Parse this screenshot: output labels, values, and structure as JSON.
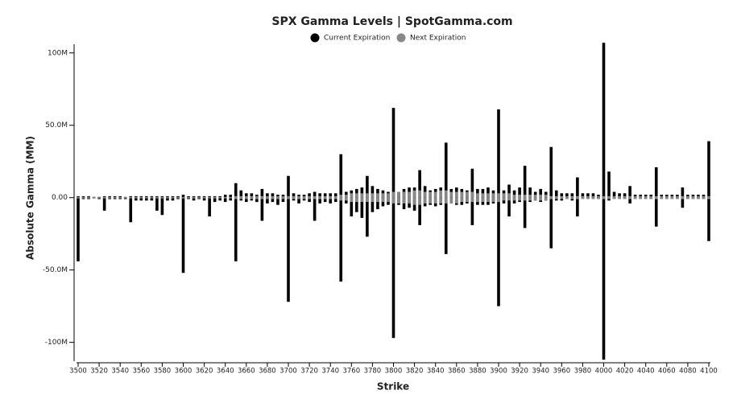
{
  "chart_data": {
    "type": "bar",
    "title": "SPX Gamma Levels | SpotGamma.com",
    "x_label": "Strike",
    "y_label": "Absolute Gamma (MM)",
    "x": [
      3500,
      3505,
      3510,
      3515,
      3520,
      3525,
      3530,
      3535,
      3540,
      3545,
      3550,
      3555,
      3560,
      3565,
      3570,
      3575,
      3580,
      3585,
      3590,
      3595,
      3600,
      3605,
      3610,
      3615,
      3620,
      3625,
      3630,
      3635,
      3640,
      3645,
      3650,
      3655,
      3660,
      3665,
      3670,
      3675,
      3680,
      3685,
      3690,
      3695,
      3700,
      3705,
      3710,
      3715,
      3720,
      3725,
      3730,
      3735,
      3740,
      3745,
      3750,
      3755,
      3760,
      3765,
      3770,
      3775,
      3780,
      3785,
      3790,
      3795,
      3800,
      3805,
      3810,
      3815,
      3820,
      3825,
      3830,
      3835,
      3840,
      3845,
      3850,
      3855,
      3860,
      3865,
      3870,
      3875,
      3880,
      3885,
      3890,
      3895,
      3900,
      3905,
      3910,
      3915,
      3920,
      3925,
      3930,
      3935,
      3940,
      3945,
      3950,
      3955,
      3960,
      3965,
      3970,
      3975,
      3980,
      3985,
      3990,
      3995,
      4000,
      4005,
      4010,
      4015,
      4020,
      4025,
      4030,
      4035,
      4040,
      4045,
      4050,
      4055,
      4060,
      4065,
      4070,
      4075,
      4080,
      4085,
      4090,
      4095,
      4100
    ],
    "series": [
      {
        "name": "Current Expiration",
        "color": "#000000",
        "calls": [
          1,
          1,
          1,
          0.5,
          0.5,
          1,
          1,
          1,
          1,
          0.5,
          1,
          1,
          1,
          1,
          1,
          1,
          1,
          1,
          1,
          1,
          2,
          1,
          1,
          1,
          1,
          1,
          1,
          1,
          2,
          2,
          10,
          5,
          3,
          3,
          2,
          6,
          3,
          3,
          2,
          2,
          15,
          3,
          2,
          2,
          3,
          4,
          3,
          3,
          3,
          3,
          30,
          4,
          5,
          6,
          7,
          15,
          8,
          6,
          5,
          4,
          62,
          4,
          6,
          7,
          7,
          19,
          8,
          5,
          6,
          7,
          38,
          6,
          7,
          6,
          5,
          20,
          6,
          6,
          7,
          5,
          61,
          5,
          9,
          5,
          7,
          22,
          7,
          4,
          6,
          4,
          35,
          5,
          3,
          3,
          3,
          14,
          3,
          3,
          3,
          2,
          107,
          18,
          4,
          3,
          3,
          8,
          2,
          2,
          2,
          2,
          21,
          2,
          2,
          2,
          2,
          7,
          2,
          2,
          2,
          2,
          39
        ],
        "puts": [
          -44,
          -1,
          -1,
          -0.5,
          -1,
          -9,
          -1,
          -1,
          -1,
          -1,
          -17,
          -2,
          -2,
          -2,
          -2,
          -9,
          -12,
          -2,
          -2,
          -1,
          -52,
          -1,
          -2,
          -1,
          -2,
          -13,
          -3,
          -2,
          -3,
          -2,
          -44,
          -2,
          -3,
          -2,
          -3,
          -16,
          -4,
          -3,
          -5,
          -3,
          -72,
          -2,
          -4,
          -2,
          -3,
          -16,
          -4,
          -3,
          -4,
          -3,
          -58,
          -4,
          -13,
          -10,
          -14,
          -27,
          -10,
          -8,
          -6,
          -5,
          -97,
          -5,
          -8,
          -7,
          -9,
          -19,
          -6,
          -5,
          -6,
          -5,
          -39,
          -4,
          -5,
          -5,
          -4,
          -19,
          -5,
          -5,
          -5,
          -4,
          -75,
          -4,
          -13,
          -4,
          -3,
          -21,
          -3,
          -2,
          -3,
          -2,
          -35,
          -2,
          -2,
          -1,
          -2,
          -13,
          -1,
          -1,
          -1,
          -1,
          -112,
          -2,
          -1,
          -1,
          -1,
          -4,
          -1,
          -1,
          -1,
          -1,
          -20,
          -1,
          -1,
          -1,
          -1,
          -7,
          -1,
          -1,
          -1,
          -1,
          -30
        ]
      },
      {
        "name": "Next Expiration",
        "color": "#888888",
        "calls": [
          0.5,
          0.5,
          0.5,
          0.5,
          0.5,
          0.5,
          0.5,
          0.5,
          0.5,
          0.5,
          0.5,
          0.5,
          0.5,
          0.5,
          0.5,
          0.5,
          0.5,
          0.5,
          0.5,
          0.5,
          0.5,
          0.5,
          0.5,
          0.5,
          0.5,
          0.5,
          0.5,
          0.5,
          0.5,
          0.5,
          1,
          1,
          1,
          1,
          1,
          1,
          1,
          1,
          1,
          1,
          1,
          1,
          1,
          1,
          1,
          1,
          1,
          1,
          1,
          1,
          2,
          2,
          3,
          3,
          3,
          3,
          3,
          3,
          3,
          3,
          4,
          4,
          4,
          4,
          5,
          5,
          4,
          4,
          4,
          5,
          5,
          4,
          4,
          4,
          4,
          4,
          3,
          3,
          3,
          3,
          3,
          3,
          3,
          2,
          2,
          2,
          2,
          2,
          2,
          2,
          1,
          1,
          1,
          1,
          1,
          1,
          1,
          1,
          1,
          1,
          1,
          1,
          1,
          1,
          1,
          1,
          1,
          1,
          1,
          1,
          1,
          1,
          1,
          1,
          1,
          1,
          1,
          1,
          1,
          1,
          1
        ],
        "puts": [
          -0.5,
          -0.5,
          -0.5,
          -0.5,
          -0.5,
          -0.5,
          -0.5,
          -0.5,
          -0.5,
          -0.5,
          -0.5,
          -0.5,
          -0.5,
          -0.5,
          -0.5,
          -0.5,
          -0.5,
          -0.5,
          -0.5,
          -0.5,
          -0.5,
          -0.5,
          -0.5,
          -0.5,
          -0.5,
          -0.5,
          -0.5,
          -0.5,
          -0.5,
          -0.5,
          -1,
          -1,
          -1,
          -1,
          -1,
          -1,
          -1,
          -1,
          -1,
          -1,
          -1,
          -1,
          -1,
          -1,
          -1,
          -1,
          -1,
          -1,
          -1,
          -1,
          -2,
          -2,
          -3,
          -3,
          -3,
          -3,
          -3,
          -3,
          -3,
          -3,
          -4,
          -4,
          -4,
          -4,
          -5,
          -5,
          -4,
          -4,
          -4,
          -4,
          -4,
          -4,
          -4,
          -3,
          -3,
          -3,
          -3,
          -3,
          -3,
          -3,
          -3,
          -2,
          -2,
          -2,
          -2,
          -2,
          -2,
          -2,
          -2,
          -2,
          -1,
          -1,
          -1,
          -1,
          -1,
          -1,
          -1,
          -1,
          -1,
          -1,
          -1,
          -1,
          -1,
          -1,
          -1,
          -1,
          -1,
          -1,
          -1,
          -1,
          -1,
          -1,
          -1,
          -1,
          -1,
          -1,
          -1,
          -1,
          -1,
          -1,
          -1
        ]
      }
    ],
    "xlim": [
      3500,
      4100
    ],
    "xticks": [
      3500,
      3520,
      3540,
      3560,
      3580,
      3600,
      3620,
      3640,
      3660,
      3680,
      3700,
      3720,
      3740,
      3760,
      3780,
      3800,
      3820,
      3840,
      3860,
      3880,
      3900,
      3920,
      3940,
      3960,
      3980,
      4000,
      4020,
      4040,
      4060,
      4080,
      4100
    ],
    "ylim": [
      -113,
      106
    ],
    "yticks": [
      {
        "value": -100,
        "label": "-100M"
      },
      {
        "value": -50,
        "label": "-50.0M"
      },
      {
        "value": 0,
        "label": "0.00"
      },
      {
        "value": 50,
        "label": "50.0M"
      },
      {
        "value": 100,
        "label": "100M"
      }
    ]
  }
}
